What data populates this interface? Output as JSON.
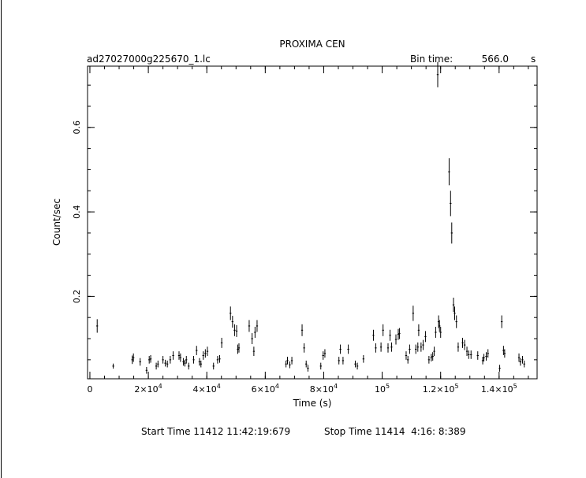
{
  "chart_data": {
    "type": "scatter",
    "title": "PROXIMA CEN",
    "file_label": "ad27027000g225670_1.lc",
    "bin_time_label": "Bin time:",
    "bin_time_value": "566.0",
    "bin_time_unit": "s",
    "xlabel": "Time (s)",
    "ylabel": "Count/sec",
    "xlim": [
      -800,
      153000
    ],
    "ylim": [
      0.005,
      0.745
    ],
    "x_ticks": [
      {
        "value": 0,
        "label": "0",
        "sup": ""
      },
      {
        "value": 20000,
        "label": "2×10",
        "sup": "4"
      },
      {
        "value": 40000,
        "label": "4×10",
        "sup": "4"
      },
      {
        "value": 60000,
        "label": "6×10",
        "sup": "4"
      },
      {
        "value": 80000,
        "label": "8×10",
        "sup": "4"
      },
      {
        "value": 100000,
        "label": "10",
        "sup": "5"
      },
      {
        "value": 120000,
        "label": "1.2×10",
        "sup": "5"
      },
      {
        "value": 140000,
        "label": "1.4×10",
        "sup": "5"
      }
    ],
    "x_minor_step": 5000,
    "y_ticks": [
      {
        "value": 0.2,
        "label": "0.2"
      },
      {
        "value": 0.4,
        "label": "0.4"
      },
      {
        "value": 0.6,
        "label": "0.6"
      }
    ],
    "y_minor_step": 0.05,
    "points": [
      [
        2500,
        0.13,
        0.016
      ],
      [
        8000,
        0.035,
        0.006
      ],
      [
        14500,
        0.05,
        0.01
      ],
      [
        14900,
        0.055,
        0.01
      ],
      [
        17200,
        0.045,
        0.009
      ],
      [
        19400,
        0.025,
        0.008
      ],
      [
        20300,
        0.05,
        0.009
      ],
      [
        20800,
        0.052,
        0.009
      ],
      [
        22700,
        0.035,
        0.008
      ],
      [
        23300,
        0.04,
        0.008
      ],
      [
        25000,
        0.05,
        0.009
      ],
      [
        25800,
        0.042,
        0.008
      ],
      [
        26500,
        0.04,
        0.008
      ],
      [
        27500,
        0.05,
        0.009
      ],
      [
        28500,
        0.06,
        0.01
      ],
      [
        30500,
        0.06,
        0.01
      ],
      [
        31000,
        0.055,
        0.01
      ],
      [
        32000,
        0.045,
        0.009
      ],
      [
        32500,
        0.042,
        0.008
      ],
      [
        33000,
        0.05,
        0.009
      ],
      [
        33800,
        0.035,
        0.008
      ],
      [
        35500,
        0.05,
        0.009
      ],
      [
        36500,
        0.072,
        0.011
      ],
      [
        37500,
        0.045,
        0.009
      ],
      [
        38000,
        0.04,
        0.008
      ],
      [
        38800,
        0.06,
        0.01
      ],
      [
        39500,
        0.065,
        0.01
      ],
      [
        40200,
        0.07,
        0.011
      ],
      [
        42300,
        0.035,
        0.008
      ],
      [
        43700,
        0.05,
        0.009
      ],
      [
        44400,
        0.052,
        0.009
      ],
      [
        45100,
        0.09,
        0.012
      ],
      [
        48100,
        0.16,
        0.016
      ],
      [
        48800,
        0.14,
        0.014
      ],
      [
        49500,
        0.12,
        0.014
      ],
      [
        50200,
        0.118,
        0.014
      ],
      [
        50600,
        0.075,
        0.011
      ],
      [
        51000,
        0.078,
        0.011
      ],
      [
        54500,
        0.13,
        0.014
      ],
      [
        55500,
        0.1,
        0.013
      ],
      [
        56100,
        0.07,
        0.011
      ],
      [
        56500,
        0.115,
        0.013
      ],
      [
        57200,
        0.13,
        0.014
      ],
      [
        67100,
        0.04,
        0.008
      ],
      [
        67600,
        0.048,
        0.009
      ],
      [
        68400,
        0.038,
        0.008
      ],
      [
        69100,
        0.048,
        0.009
      ],
      [
        72600,
        0.12,
        0.014
      ],
      [
        73300,
        0.078,
        0.011
      ],
      [
        74000,
        0.04,
        0.008
      ],
      [
        74600,
        0.03,
        0.008
      ],
      [
        79000,
        0.035,
        0.008
      ],
      [
        79800,
        0.06,
        0.01
      ],
      [
        80400,
        0.065,
        0.01
      ],
      [
        85200,
        0.048,
        0.009
      ],
      [
        85700,
        0.075,
        0.011
      ],
      [
        86600,
        0.048,
        0.009
      ],
      [
        88400,
        0.075,
        0.011
      ],
      [
        90800,
        0.04,
        0.008
      ],
      [
        91500,
        0.035,
        0.008
      ],
      [
        93600,
        0.052,
        0.009
      ],
      [
        97000,
        0.108,
        0.013
      ],
      [
        97800,
        0.078,
        0.011
      ],
      [
        99600,
        0.08,
        0.011
      ],
      [
        100300,
        0.12,
        0.014
      ],
      [
        102000,
        0.078,
        0.011
      ],
      [
        102700,
        0.108,
        0.013
      ],
      [
        103200,
        0.08,
        0.011
      ],
      [
        104700,
        0.098,
        0.012
      ],
      [
        105500,
        0.11,
        0.013
      ],
      [
        105900,
        0.112,
        0.013
      ],
      [
        108200,
        0.06,
        0.01
      ],
      [
        108800,
        0.05,
        0.009
      ],
      [
        109400,
        0.075,
        0.011
      ],
      [
        110600,
        0.16,
        0.018
      ],
      [
        111500,
        0.075,
        0.011
      ],
      [
        112200,
        0.08,
        0.011
      ],
      [
        112500,
        0.12,
        0.014
      ],
      [
        113300,
        0.08,
        0.011
      ],
      [
        114000,
        0.085,
        0.012
      ],
      [
        114800,
        0.105,
        0.013
      ],
      [
        116000,
        0.05,
        0.009
      ],
      [
        116800,
        0.055,
        0.009
      ],
      [
        117300,
        0.058,
        0.01
      ],
      [
        117800,
        0.07,
        0.011
      ],
      [
        118300,
        0.115,
        0.013
      ],
      [
        119000,
        0.725,
        0.03
      ],
      [
        119300,
        0.14,
        0.015
      ],
      [
        119600,
        0.13,
        0.014
      ],
      [
        120000,
        0.115,
        0.013
      ],
      [
        122900,
        0.495,
        0.032
      ],
      [
        123400,
        0.42,
        0.03
      ],
      [
        123800,
        0.35,
        0.025
      ],
      [
        124400,
        0.18,
        0.017
      ],
      [
        124800,
        0.16,
        0.016
      ],
      [
        125400,
        0.14,
        0.015
      ],
      [
        126000,
        0.08,
        0.011
      ],
      [
        127500,
        0.09,
        0.012
      ],
      [
        128200,
        0.085,
        0.012
      ],
      [
        129000,
        0.07,
        0.011
      ],
      [
        129600,
        0.062,
        0.01
      ],
      [
        130400,
        0.062,
        0.01
      ],
      [
        132700,
        0.06,
        0.01
      ],
      [
        134400,
        0.048,
        0.009
      ],
      [
        134800,
        0.055,
        0.009
      ],
      [
        135600,
        0.058,
        0.01
      ],
      [
        136200,
        0.065,
        0.01
      ],
      [
        140200,
        0.03,
        0.008
      ],
      [
        140900,
        0.14,
        0.015
      ],
      [
        141500,
        0.072,
        0.011
      ],
      [
        141900,
        0.065,
        0.01
      ],
      [
        146800,
        0.055,
        0.01
      ],
      [
        147300,
        0.045,
        0.009
      ],
      [
        148000,
        0.05,
        0.009
      ],
      [
        148600,
        0.04,
        0.008
      ]
    ]
  },
  "footer": {
    "start": "Start Time 11412 11:42:19:679",
    "stop": "Stop Time 11414  4:16: 8:389"
  }
}
